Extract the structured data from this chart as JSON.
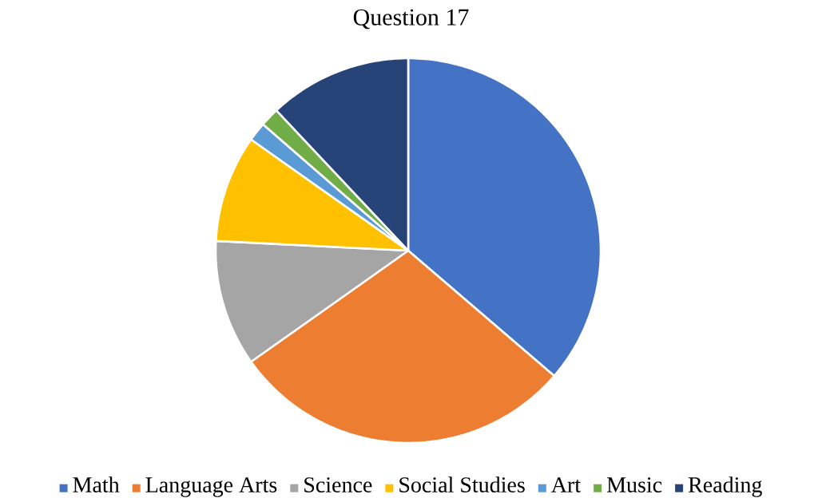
{
  "chart_data": {
    "type": "pie",
    "title": "Question 17",
    "categories": [
      "Math",
      "Language Arts",
      "Science",
      "Social Studies",
      "Art",
      "Music",
      "Reading"
    ],
    "values": [
      36.3,
      28.9,
      10.6,
      9.0,
      1.6,
      1.6,
      12.0
    ],
    "colors": [
      "#4472c4",
      "#ed7d31",
      "#a5a5a5",
      "#ffc000",
      "#5b9bd5",
      "#70ad47",
      "#264478"
    ],
    "legend": "bottom"
  }
}
